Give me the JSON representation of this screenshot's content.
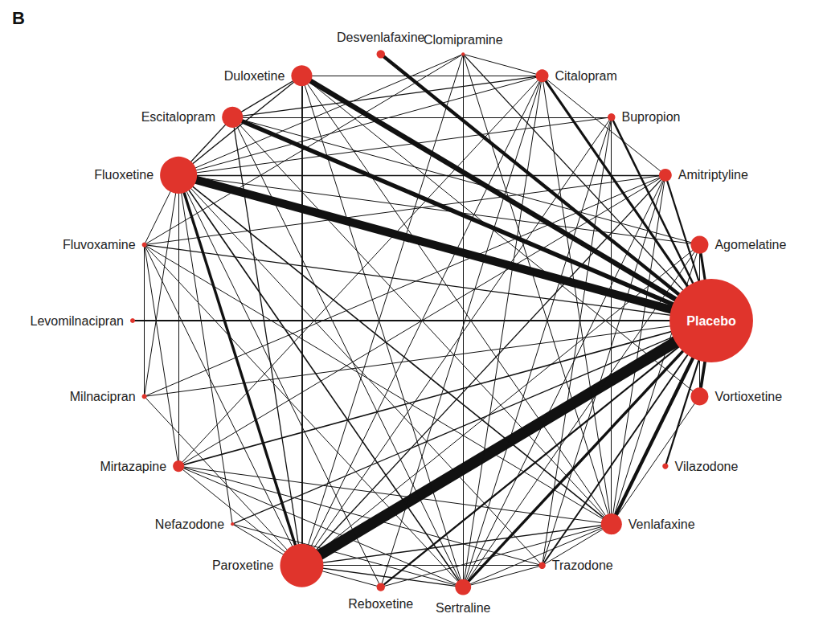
{
  "chart_data": {
    "type": "graph",
    "title": "B",
    "color": "#e0342c",
    "edge_color": "#111111",
    "nodes": [
      {
        "name": "Placebo",
        "participants": 30000
      },
      {
        "name": "Vortioxetine",
        "participants": 1350
      },
      {
        "name": "Vilazodone",
        "participants": 150
      },
      {
        "name": "Venlafaxine",
        "participants": 1900
      },
      {
        "name": "Trazodone",
        "participants": 200
      },
      {
        "name": "Sertraline",
        "participants": 1100
      },
      {
        "name": "Reboxetine",
        "participants": 300
      },
      {
        "name": "Paroxetine",
        "participants": 8100
      },
      {
        "name": "Nefazodone",
        "participants": 50
      },
      {
        "name": "Mirtazapine",
        "participants": 550
      },
      {
        "name": "Milnacipran",
        "participants": 100
      },
      {
        "name": "Levomilnacipran",
        "participants": 100
      },
      {
        "name": "Fluvoxamine",
        "participants": 100
      },
      {
        "name": "Fluoxetine",
        "participants": 5900
      },
      {
        "name": "Escitalopram",
        "participants": 1900
      },
      {
        "name": "Duloxetine",
        "participants": 1900
      },
      {
        "name": "Desvenlafaxine",
        "participants": 300
      },
      {
        "name": "Clomipramine",
        "participants": 50
      },
      {
        "name": "Citalopram",
        "participants": 700
      },
      {
        "name": "Bupropion",
        "participants": 250
      },
      {
        "name": "Amitriptyline",
        "participants": 700
      },
      {
        "name": "Agomelatine",
        "participants": 1350
      }
    ],
    "edges": [
      {
        "source": "Placebo",
        "target": "Paroxetine",
        "trials": 44
      },
      {
        "source": "Placebo",
        "target": "Fluoxetine",
        "trials": 32
      },
      {
        "source": "Placebo",
        "target": "Duloxetine",
        "trials": 19
      },
      {
        "source": "Placebo",
        "target": "Escitalopram",
        "trials": 16
      },
      {
        "source": "Placebo",
        "target": "Desvenlafaxine",
        "trials": 12
      },
      {
        "source": "Placebo",
        "target": "Venlafaxine",
        "trials": 12
      },
      {
        "source": "Placebo",
        "target": "Vortioxetine",
        "trials": 10
      },
      {
        "source": "Placebo",
        "target": "Sertraline",
        "trials": 9
      },
      {
        "source": "Placebo",
        "target": "Citalopram",
        "trials": 8
      },
      {
        "source": "Placebo",
        "target": "Agomelatine",
        "trials": 8
      },
      {
        "source": "Placebo",
        "target": "Bupropion",
        "trials": 6
      },
      {
        "source": "Placebo",
        "target": "Amitriptyline",
        "trials": 5
      },
      {
        "source": "Placebo",
        "target": "Reboxetine",
        "trials": 5
      },
      {
        "source": "Placebo",
        "target": "Vilazodone",
        "trials": 5
      },
      {
        "source": "Placebo",
        "target": "Levomilnacipran",
        "trials": 5
      },
      {
        "source": "Placebo",
        "target": "Trazodone",
        "trials": 4
      },
      {
        "source": "Placebo",
        "target": "Mirtazapine",
        "trials": 3
      },
      {
        "source": "Placebo",
        "target": "Nefazodone",
        "trials": 2
      },
      {
        "source": "Placebo",
        "target": "Fluvoxamine",
        "trials": 2
      },
      {
        "source": "Placebo",
        "target": "Clomipramine",
        "trials": 2
      },
      {
        "source": "Placebo",
        "target": "Milnacipran",
        "trials": 1
      },
      {
        "source": "Fluoxetine",
        "target": "Paroxetine",
        "trials": 9
      },
      {
        "source": "Fluoxetine",
        "target": "Escitalopram",
        "trials": 2
      },
      {
        "source": "Fluoxetine",
        "target": "Duloxetine",
        "trials": 2
      },
      {
        "source": "Fluoxetine",
        "target": "Citalopram",
        "trials": 1
      },
      {
        "source": "Fluoxetine",
        "target": "Sertraline",
        "trials": 3
      },
      {
        "source": "Fluoxetine",
        "target": "Venlafaxine",
        "trials": 3
      },
      {
        "source": "Fluoxetine",
        "target": "Amitriptyline",
        "trials": 2
      },
      {
        "source": "Fluoxetine",
        "target": "Agomelatine",
        "trials": 1
      },
      {
        "source": "Fluoxetine",
        "target": "Bupropion",
        "trials": 1
      },
      {
        "source": "Fluoxetine",
        "target": "Mirtazapine",
        "trials": 1
      },
      {
        "source": "Fluoxetine",
        "target": "Trazodone",
        "trials": 1
      },
      {
        "source": "Fluoxetine",
        "target": "Reboxetine",
        "trials": 1
      },
      {
        "source": "Fluoxetine",
        "target": "Nefazodone",
        "trials": 1
      },
      {
        "source": "Fluoxetine",
        "target": "Fluvoxamine",
        "trials": 1
      },
      {
        "source": "Fluoxetine",
        "target": "Clomipramine",
        "trials": 1
      },
      {
        "source": "Fluoxetine",
        "target": "Milnacipran",
        "trials": 1
      },
      {
        "source": "Paroxetine",
        "target": "Duloxetine",
        "trials": 4
      },
      {
        "source": "Paroxetine",
        "target": "Escitalopram",
        "trials": 2
      },
      {
        "source": "Paroxetine",
        "target": "Citalopram",
        "trials": 1
      },
      {
        "source": "Paroxetine",
        "target": "Sertraline",
        "trials": 2
      },
      {
        "source": "Paroxetine",
        "target": "Venlafaxine",
        "trials": 2
      },
      {
        "source": "Paroxetine",
        "target": "Mirtazapine",
        "trials": 1
      },
      {
        "source": "Paroxetine",
        "target": "Fluvoxamine",
        "trials": 1
      },
      {
        "source": "Paroxetine",
        "target": "Milnacipran",
        "trials": 1
      },
      {
        "source": "Paroxetine",
        "target": "Nefazodone",
        "trials": 1
      },
      {
        "source": "Paroxetine",
        "target": "Amitriptyline",
        "trials": 2
      },
      {
        "source": "Paroxetine",
        "target": "Clomipramine",
        "trials": 1
      },
      {
        "source": "Paroxetine",
        "target": "Bupropion",
        "trials": 1
      },
      {
        "source": "Paroxetine",
        "target": "Agomelatine",
        "trials": 1
      },
      {
        "source": "Paroxetine",
        "target": "Reboxetine",
        "trials": 1
      },
      {
        "source": "Paroxetine",
        "target": "Trazodone",
        "trials": 1
      },
      {
        "source": "Duloxetine",
        "target": "Escitalopram",
        "trials": 2
      },
      {
        "source": "Duloxetine",
        "target": "Citalopram",
        "trials": 1
      },
      {
        "source": "Duloxetine",
        "target": "Venlafaxine",
        "trials": 1
      },
      {
        "source": "Duloxetine",
        "target": "Vortioxetine",
        "trials": 1
      },
      {
        "source": "Duloxetine",
        "target": "Sertraline",
        "trials": 1
      },
      {
        "source": "Escitalopram",
        "target": "Citalopram",
        "trials": 2
      },
      {
        "source": "Escitalopram",
        "target": "Sertraline",
        "trials": 1
      },
      {
        "source": "Escitalopram",
        "target": "Venlafaxine",
        "trials": 1
      },
      {
        "source": "Escitalopram",
        "target": "Bupropion",
        "trials": 1
      },
      {
        "source": "Escitalopram",
        "target": "Agomelatine",
        "trials": 1
      },
      {
        "source": "Citalopram",
        "target": "Sertraline",
        "trials": 1
      },
      {
        "source": "Citalopram",
        "target": "Venlafaxine",
        "trials": 1
      },
      {
        "source": "Citalopram",
        "target": "Mirtazapine",
        "trials": 1
      },
      {
        "source": "Citalopram",
        "target": "Reboxetine",
        "trials": 1
      },
      {
        "source": "Citalopram",
        "target": "Amitriptyline",
        "trials": 1
      },
      {
        "source": "Citalopram",
        "target": "Clomipramine",
        "trials": 1
      },
      {
        "source": "Bupropion",
        "target": "Sertraline",
        "trials": 1
      },
      {
        "source": "Bupropion",
        "target": "Venlafaxine",
        "trials": 1
      },
      {
        "source": "Bupropion",
        "target": "Trazodone",
        "trials": 1
      },
      {
        "source": "Amitriptyline",
        "target": "Fluvoxamine",
        "trials": 1
      },
      {
        "source": "Amitriptyline",
        "target": "Sertraline",
        "trials": 1
      },
      {
        "source": "Amitriptyline",
        "target": "Venlafaxine",
        "trials": 1
      },
      {
        "source": "Amitriptyline",
        "target": "Mirtazapine",
        "trials": 1
      },
      {
        "source": "Amitriptyline",
        "target": "Trazodone",
        "trials": 1
      },
      {
        "source": "Amitriptyline",
        "target": "Milnacipran",
        "trials": 1
      },
      {
        "source": "Agomelatine",
        "target": "Sertraline",
        "trials": 1
      },
      {
        "source": "Agomelatine",
        "target": "Venlafaxine",
        "trials": 1
      },
      {
        "source": "Agomelatine",
        "target": "Vortioxetine",
        "trials": 1
      },
      {
        "source": "Vortioxetine",
        "target": "Venlafaxine",
        "trials": 1
      },
      {
        "source": "Venlafaxine",
        "target": "Sertraline",
        "trials": 1
      },
      {
        "source": "Venlafaxine",
        "target": "Mirtazapine",
        "trials": 1
      },
      {
        "source": "Venlafaxine",
        "target": "Trazodone",
        "trials": 1
      },
      {
        "source": "Venlafaxine",
        "target": "Fluvoxamine",
        "trials": 1
      },
      {
        "source": "Venlafaxine",
        "target": "Reboxetine",
        "trials": 1
      },
      {
        "source": "Trazodone",
        "target": "Sertraline",
        "trials": 1
      },
      {
        "source": "Trazodone",
        "target": "Mirtazapine",
        "trials": 1
      },
      {
        "source": "Sertraline",
        "target": "Mirtazapine",
        "trials": 1
      },
      {
        "source": "Sertraline",
        "target": "Clomipramine",
        "trials": 1
      },
      {
        "source": "Sertraline",
        "target": "Fluvoxamine",
        "trials": 1
      },
      {
        "source": "Sertraline",
        "target": "Nefazodone",
        "trials": 1
      },
      {
        "source": "Mirtazapine",
        "target": "Fluvoxamine",
        "trials": 1
      },
      {
        "source": "Milnacipran",
        "target": "Fluvoxamine",
        "trials": 1
      },
      {
        "source": "Clomipramine",
        "target": "Fluvoxamine",
        "trials": 1
      },
      {
        "source": "Clomipramine",
        "target": "Venlafaxine",
        "trials": 1
      }
    ]
  }
}
